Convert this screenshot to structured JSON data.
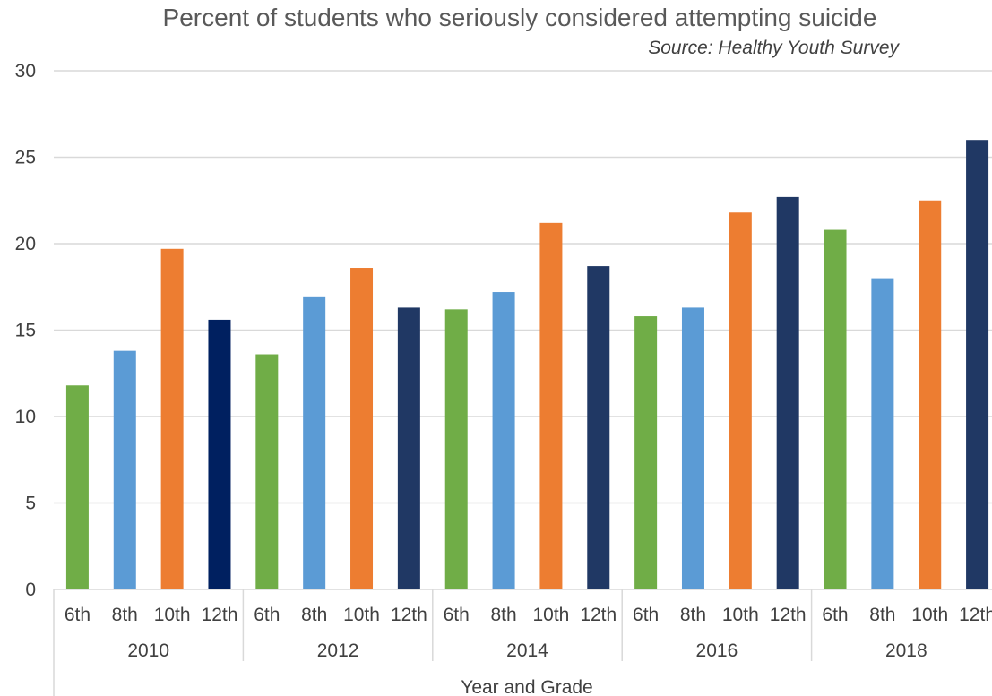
{
  "chart_data": {
    "type": "bar",
    "title": "Percent of students who seriously considered attempting suicide",
    "subtitle": "Source: Healthy Youth Survey",
    "xlabel": "Year and Grade",
    "ylabel": "",
    "ylim": [
      0,
      30
    ],
    "yticks": [
      "0",
      "5",
      "10",
      "15",
      "20",
      "25",
      "30"
    ],
    "grid": true,
    "legend": "none",
    "years": [
      "2010",
      "2012",
      "2014",
      "2016",
      "2018"
    ],
    "grades": [
      "6th",
      "8th",
      "10th",
      "12th"
    ],
    "colors": {
      "6th": "#70ad47",
      "8th": "#5b9bd5",
      "10th": "#ed7d31",
      "12th": "#203864",
      "12th_2010": "#002060"
    },
    "series": [
      {
        "values": [
          11.8,
          13.6,
          16.2,
          15.8,
          20.8
        ]
      },
      {
        "values": [
          13.8,
          16.9,
          17.2,
          16.3,
          18.0
        ]
      },
      {
        "values": [
          19.7,
          18.6,
          21.2,
          21.8,
          22.5
        ]
      },
      {
        "values": [
          15.6,
          16.3,
          18.7,
          22.7,
          26.0
        ]
      }
    ]
  }
}
